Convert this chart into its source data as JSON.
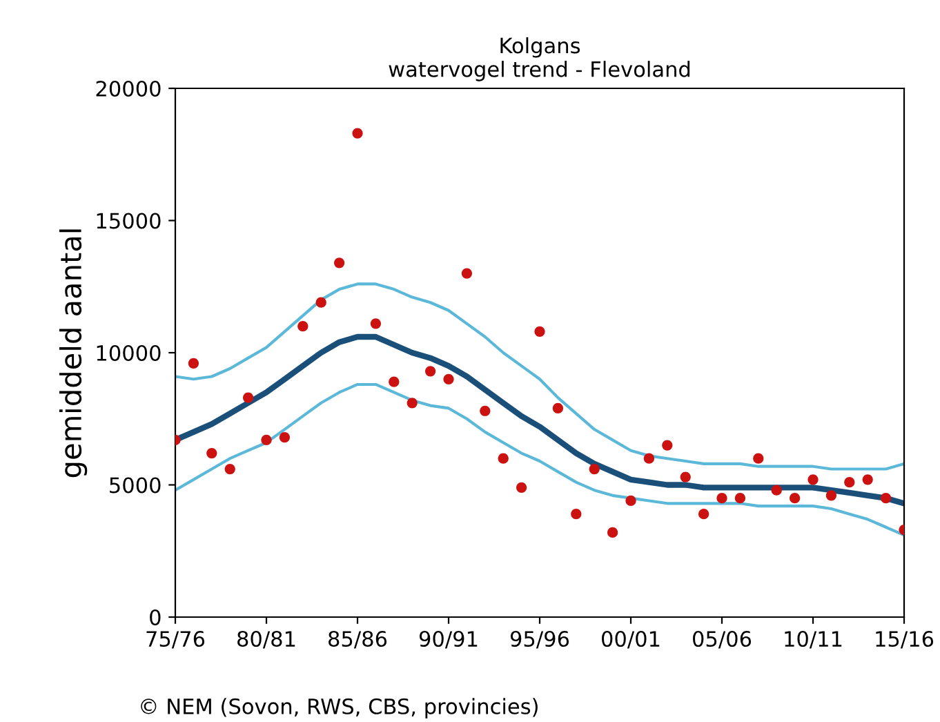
{
  "chart_data": {
    "type": "scatter",
    "title": "Kolgans\nwatervogel trend - Flevoland",
    "ylabel": "gemiddeld aantal",
    "annotations": [
      "© NEM (Sovon, RWS, CBS, provincies)"
    ],
    "categories": [
      "75/76",
      null,
      null,
      null,
      null,
      "80/81",
      null,
      null,
      null,
      null,
      "85/86",
      null,
      null,
      null,
      null,
      "90/91",
      null,
      null,
      null,
      null,
      "95/96",
      null,
      null,
      null,
      null,
      "00/01",
      null,
      null,
      null,
      null,
      "05/06",
      null,
      null,
      null,
      null,
      "10/11",
      null,
      null,
      null,
      null,
      "15/16"
    ],
    "ylim": [
      0,
      20000
    ],
    "yticks": [
      0,
      5000,
      10000,
      15000,
      20000
    ],
    "grid": false,
    "marker": "circle",
    "series": [
      {
        "color": "#cc1111",
        "values": [
          6700,
          9600,
          6200,
          5600,
          8300,
          6700,
          6800,
          11000,
          11900,
          13400,
          18300,
          11100,
          8900,
          8100,
          9300,
          9000,
          13000,
          7800,
          6000,
          4900,
          10800,
          7900,
          3900,
          5600,
          3200,
          4400,
          6000,
          6500,
          5300,
          3900,
          4500,
          4500,
          6000,
          4800,
          4500,
          5200,
          4600,
          5100,
          5200,
          4500,
          3300
        ]
      },
      {
        "type": "line",
        "marker": "none",
        "line_style": "solid",
        "color": "#1a4f7a",
        "values": [
          6700,
          7000,
          7300,
          7700,
          8100,
          8500,
          9000,
          9500,
          10000,
          10400,
          10600,
          10600,
          10300,
          10000,
          9800,
          9500,
          9100,
          8600,
          8100,
          7600,
          7200,
          6700,
          6200,
          5800,
          5500,
          5200,
          5100,
          5000,
          5000,
          4900,
          4900,
          4900,
          4900,
          4900,
          4900,
          4900,
          4800,
          4700,
          4600,
          4500,
          4300
        ]
      },
      {
        "type": "line",
        "marker": "none",
        "line_style": "solid",
        "color": "#5bb8d9",
        "values": [
          9100,
          9000,
          9100,
          9400,
          9800,
          10200,
          10800,
          11400,
          12000,
          12400,
          12600,
          12600,
          12400,
          12100,
          11900,
          11600,
          11100,
          10600,
          10000,
          9500,
          9000,
          8300,
          7700,
          7100,
          6700,
          6300,
          6100,
          6000,
          5900,
          5800,
          5800,
          5800,
          5700,
          5700,
          5700,
          5700,
          5600,
          5600,
          5600,
          5600,
          5800
        ]
      },
      {
        "type": "line",
        "marker": "none",
        "line_style": "solid",
        "color": "#5bb8d9",
        "values": [
          4800,
          5200,
          5600,
          6000,
          6300,
          6600,
          7100,
          7600,
          8100,
          8500,
          8800,
          8800,
          8500,
          8200,
          8000,
          7900,
          7500,
          7000,
          6600,
          6200,
          5900,
          5500,
          5100,
          4800,
          4600,
          4500,
          4400,
          4300,
          4300,
          4300,
          4300,
          4300,
          4200,
          4200,
          4200,
          4200,
          4100,
          3900,
          3700,
          3400,
          3100
        ]
      }
    ]
  }
}
